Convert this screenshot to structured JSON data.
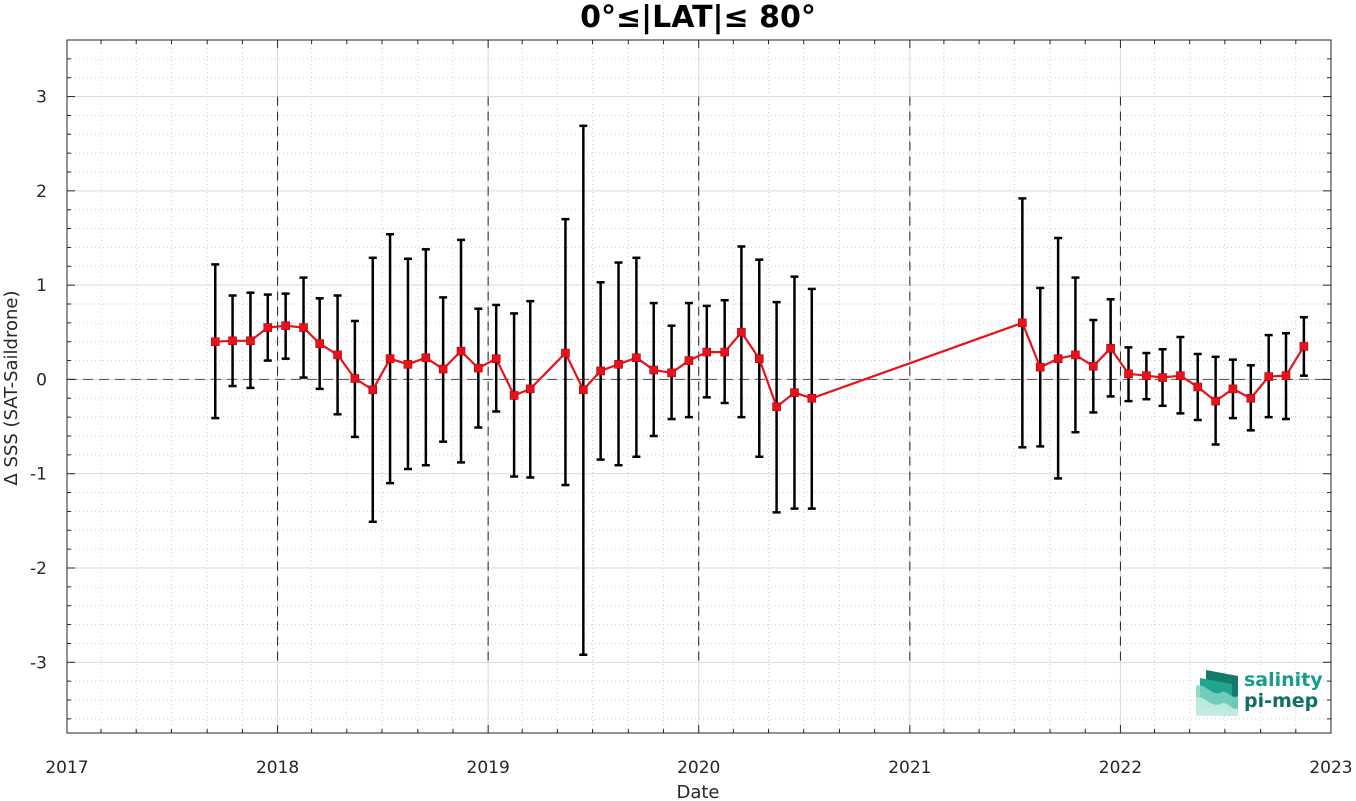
{
  "chart_data": {
    "type": "line",
    "title": "0°≤|LAT|≤ 80°",
    "xlabel": "Date",
    "ylabel": "Δ SSS (SAT-Saildrone)",
    "xlim": [
      "2017-01-01",
      "2023-01-01"
    ],
    "ylim": [
      -3.75,
      3.6
    ],
    "x_ticks": [
      "2017",
      "2018",
      "2019",
      "2020",
      "2021",
      "2022",
      "2023"
    ],
    "y_ticks": [
      3,
      2,
      1,
      0,
      -1,
      -2,
      -3
    ],
    "y_tick_labels": [
      "3",
      "2",
      "1",
      "0",
      "-1",
      "-2",
      "-3"
    ],
    "grid": "minor dotted",
    "year_separators": [
      "2018",
      "2019",
      "2020",
      "2021",
      "2022"
    ],
    "zero_line": true,
    "series": [
      {
        "color": "#e8121a",
        "marker": "square",
        "errorbar_color": "#000000",
        "points": [
          {
            "x": "2017-09-15",
            "y": 0.4,
            "lo": -0.41,
            "hi": 1.22
          },
          {
            "x": "2017-10-15",
            "y": 0.41,
            "lo": -0.07,
            "hi": 0.89
          },
          {
            "x": "2017-11-15",
            "y": 0.41,
            "lo": -0.09,
            "hi": 0.92
          },
          {
            "x": "2017-12-15",
            "y": 0.55,
            "lo": 0.2,
            "hi": 0.9
          },
          {
            "x": "2018-01-15",
            "y": 0.57,
            "lo": 0.22,
            "hi": 0.91
          },
          {
            "x": "2018-02-15",
            "y": 0.55,
            "lo": 0.02,
            "hi": 1.08
          },
          {
            "x": "2018-03-15",
            "y": 0.38,
            "lo": -0.1,
            "hi": 0.86
          },
          {
            "x": "2018-04-15",
            "y": 0.26,
            "lo": -0.37,
            "hi": 0.89
          },
          {
            "x": "2018-05-15",
            "y": 0.01,
            "lo": -0.61,
            "hi": 0.62
          },
          {
            "x": "2018-06-15",
            "y": -0.11,
            "lo": -1.51,
            "hi": 1.29
          },
          {
            "x": "2018-07-15",
            "y": 0.22,
            "lo": -1.1,
            "hi": 1.54
          },
          {
            "x": "2018-08-15",
            "y": 0.16,
            "lo": -0.95,
            "hi": 1.28
          },
          {
            "x": "2018-09-15",
            "y": 0.23,
            "lo": -0.91,
            "hi": 1.38
          },
          {
            "x": "2018-10-15",
            "y": 0.11,
            "lo": -0.66,
            "hi": 0.87
          },
          {
            "x": "2018-11-15",
            "y": 0.3,
            "lo": -0.88,
            "hi": 1.48
          },
          {
            "x": "2018-12-15",
            "y": 0.12,
            "lo": -0.51,
            "hi": 0.75
          },
          {
            "x": "2019-01-15",
            "y": 0.22,
            "lo": -0.34,
            "hi": 0.79
          },
          {
            "x": "2019-02-15",
            "y": -0.17,
            "lo": -1.03,
            "hi": 0.7
          },
          {
            "x": "2019-03-15",
            "y": -0.1,
            "lo": -1.04,
            "hi": 0.83
          },
          {
            "x": "2019-05-15",
            "y": 0.28,
            "lo": -1.12,
            "hi": 1.7
          },
          {
            "x": "2019-06-15",
            "y": -0.11,
            "lo": -2.92,
            "hi": 2.69
          },
          {
            "x": "2019-07-15",
            "y": 0.09,
            "lo": -0.85,
            "hi": 1.03
          },
          {
            "x": "2019-08-15",
            "y": 0.16,
            "lo": -0.91,
            "hi": 1.24
          },
          {
            "x": "2019-09-15",
            "y": 0.23,
            "lo": -0.82,
            "hi": 1.29
          },
          {
            "x": "2019-10-15",
            "y": 0.1,
            "lo": -0.6,
            "hi": 0.81
          },
          {
            "x": "2019-11-15",
            "y": 0.07,
            "lo": -0.42,
            "hi": 0.57
          },
          {
            "x": "2019-12-15",
            "y": 0.2,
            "lo": -0.4,
            "hi": 0.81
          },
          {
            "x": "2020-01-15",
            "y": 0.29,
            "lo": -0.19,
            "hi": 0.78
          },
          {
            "x": "2020-02-15",
            "y": 0.29,
            "lo": -0.25,
            "hi": 0.84
          },
          {
            "x": "2020-03-15",
            "y": 0.5,
            "lo": -0.4,
            "hi": 1.41
          },
          {
            "x": "2020-04-15",
            "y": 0.22,
            "lo": -0.82,
            "hi": 1.27
          },
          {
            "x": "2020-05-15",
            "y": -0.29,
            "lo": -1.41,
            "hi": 0.82
          },
          {
            "x": "2020-06-15",
            "y": -0.14,
            "lo": -1.37,
            "hi": 1.09
          },
          {
            "x": "2020-07-15",
            "y": -0.2,
            "lo": -1.37,
            "hi": 0.96
          },
          {
            "x": "2021-07-15",
            "y": 0.6,
            "lo": -0.72,
            "hi": 1.92
          },
          {
            "x": "2021-08-15",
            "y": 0.13,
            "lo": -0.71,
            "hi": 0.97
          },
          {
            "x": "2021-09-15",
            "y": 0.22,
            "lo": -1.05,
            "hi": 1.5
          },
          {
            "x": "2021-10-15",
            "y": 0.26,
            "lo": -0.56,
            "hi": 1.08
          },
          {
            "x": "2021-11-15",
            "y": 0.14,
            "lo": -0.35,
            "hi": 0.63
          },
          {
            "x": "2021-12-15",
            "y": 0.33,
            "lo": -0.18,
            "hi": 0.85
          },
          {
            "x": "2022-01-15",
            "y": 0.06,
            "lo": -0.23,
            "hi": 0.34
          },
          {
            "x": "2022-02-15",
            "y": 0.04,
            "lo": -0.21,
            "hi": 0.28
          },
          {
            "x": "2022-03-15",
            "y": 0.02,
            "lo": -0.28,
            "hi": 0.32
          },
          {
            "x": "2022-04-15",
            "y": 0.04,
            "lo": -0.36,
            "hi": 0.45
          },
          {
            "x": "2022-05-15",
            "y": -0.08,
            "lo": -0.43,
            "hi": 0.27
          },
          {
            "x": "2022-06-15",
            "y": -0.23,
            "lo": -0.69,
            "hi": 0.24
          },
          {
            "x": "2022-07-15",
            "y": -0.1,
            "lo": -0.41,
            "hi": 0.21
          },
          {
            "x": "2022-08-15",
            "y": -0.2,
            "lo": -0.54,
            "hi": 0.15
          },
          {
            "x": "2022-09-15",
            "y": 0.03,
            "lo": -0.4,
            "hi": 0.47
          },
          {
            "x": "2022-10-15",
            "y": 0.04,
            "lo": -0.42,
            "hi": 0.49
          },
          {
            "x": "2022-11-15",
            "y": 0.35,
            "lo": 0.04,
            "hi": 0.66
          }
        ]
      }
    ]
  },
  "logo": {
    "line1": "salinity",
    "line2": "pi-mep",
    "color": "#1a9b8a"
  }
}
